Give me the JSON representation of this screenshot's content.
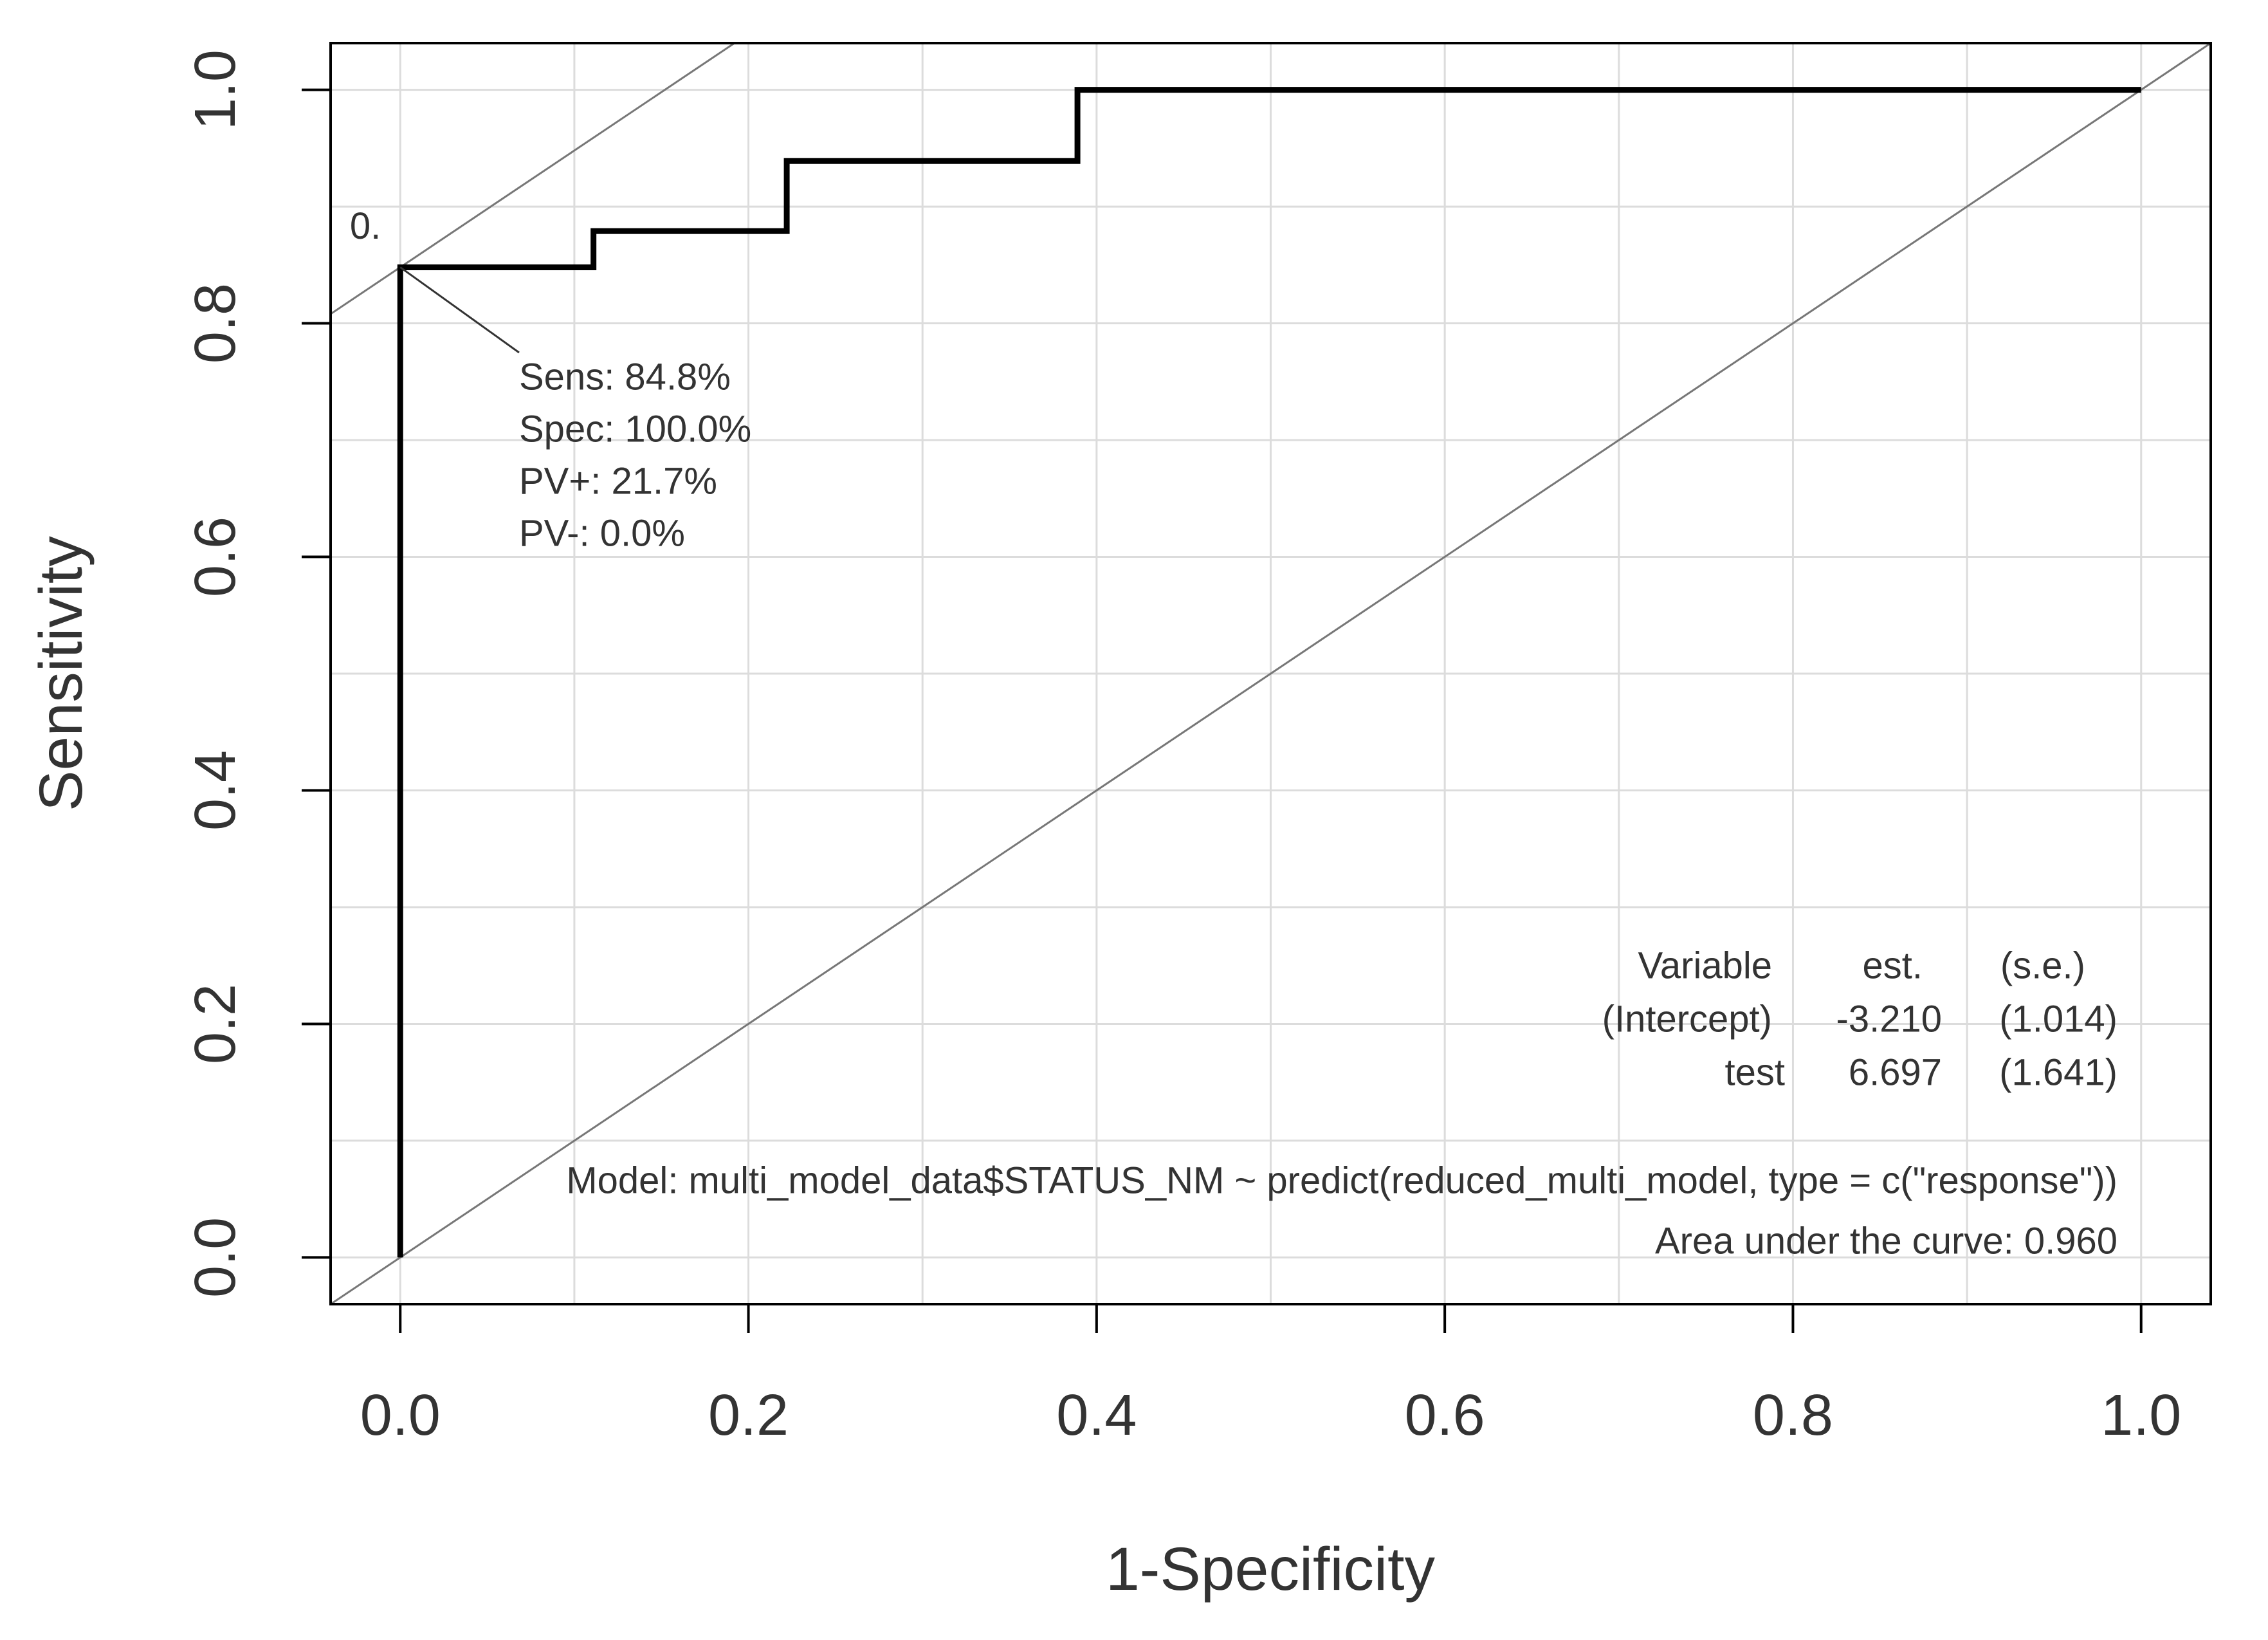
{
  "chart_data": {
    "type": "line",
    "x": [
      0,
      0,
      0.111,
      0.111,
      0.222,
      0.222,
      0.389,
      0.389,
      1
    ],
    "values": [
      0,
      0.848,
      0.848,
      0.879,
      0.879,
      0.939,
      0.939,
      1,
      1
    ],
    "color": "#000000",
    "xlabel": "1-Specificity",
    "ylabel": "Sensitivity",
    "xlim": [
      -0.04,
      1.04
    ],
    "ylim": [
      -0.04,
      1.04
    ],
    "xticks": [
      {
        "value": 0,
        "label": "0.0"
      },
      0.2,
      0.4,
      0.6,
      0.8,
      {
        "value": 1,
        "label": "1.0"
      }
    ],
    "yticks": [
      {
        "value": 0,
        "label": "0.0"
      },
      0.2,
      0.4,
      0.6,
      0.8,
      {
        "value": 1,
        "label": "1.0"
      }
    ],
    "grid": true,
    "grid_step": 0.1,
    "optimal": {
      "x": 0,
      "y": 0.848,
      "cutoff_label": "0.",
      "labels": [
        "Sens: 84.8%",
        "Spec: 100.0%",
        "PV+: 21.7%",
        "PV-: 0.0%"
      ]
    },
    "coef_table": {
      "header": [
        "Variable",
        "est.",
        "(s.e.)"
      ],
      "rows": [
        [
          "(Intercept)",
          "-3.210",
          "(1.014)"
        ],
        [
          "test",
          "6.697",
          "(1.641)"
        ]
      ]
    },
    "model": "Model:  multi_model_data$STATUS_NM ~ predict(reduced_multi_model, type = c(\"response\"))",
    "auc": "Area under the curve: 0.960"
  }
}
